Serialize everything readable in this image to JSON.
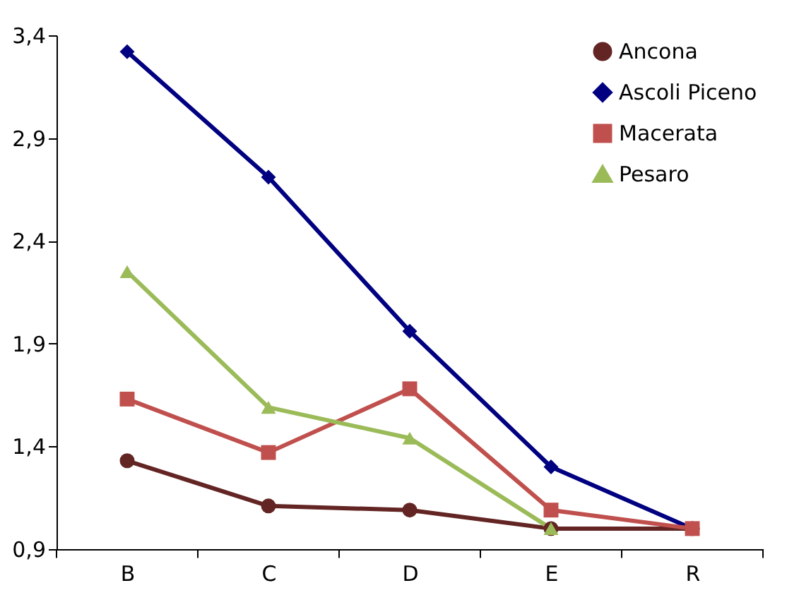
{
  "chart_data": {
    "type": "line",
    "categories": [
      "B",
      "C",
      "D",
      "E",
      "R"
    ],
    "series": [
      {
        "name": "Ancona",
        "color": "#632523",
        "marker": "circle",
        "values": [
          1.33,
          1.11,
          1.09,
          1.0,
          1.0
        ]
      },
      {
        "name": "Ascoli Piceno",
        "color": "#000080",
        "marker": "diamond",
        "values": [
          3.32,
          2.71,
          1.96,
          1.3,
          1.0
        ]
      },
      {
        "name": "Macerata",
        "color": "#c0504d",
        "marker": "square",
        "values": [
          1.63,
          1.37,
          1.68,
          1.09,
          1.0
        ]
      },
      {
        "name": "Pesaro",
        "color": "#9bbb59",
        "marker": "triangle",
        "values": [
          2.25,
          1.59,
          1.44,
          1.0,
          null
        ]
      }
    ],
    "ylim": [
      0.9,
      3.4
    ],
    "yticks": [
      {
        "value": 0.9,
        "label": "0,9"
      },
      {
        "value": 1.4,
        "label": "1,4"
      },
      {
        "value": 1.9,
        "label": "1,9"
      },
      {
        "value": 2.4,
        "label": "2,4"
      },
      {
        "value": 2.9,
        "label": "2,9"
      },
      {
        "value": 3.4,
        "label": "3,4"
      }
    ],
    "grid": false,
    "legend": "top right",
    "line_style": "solid"
  }
}
